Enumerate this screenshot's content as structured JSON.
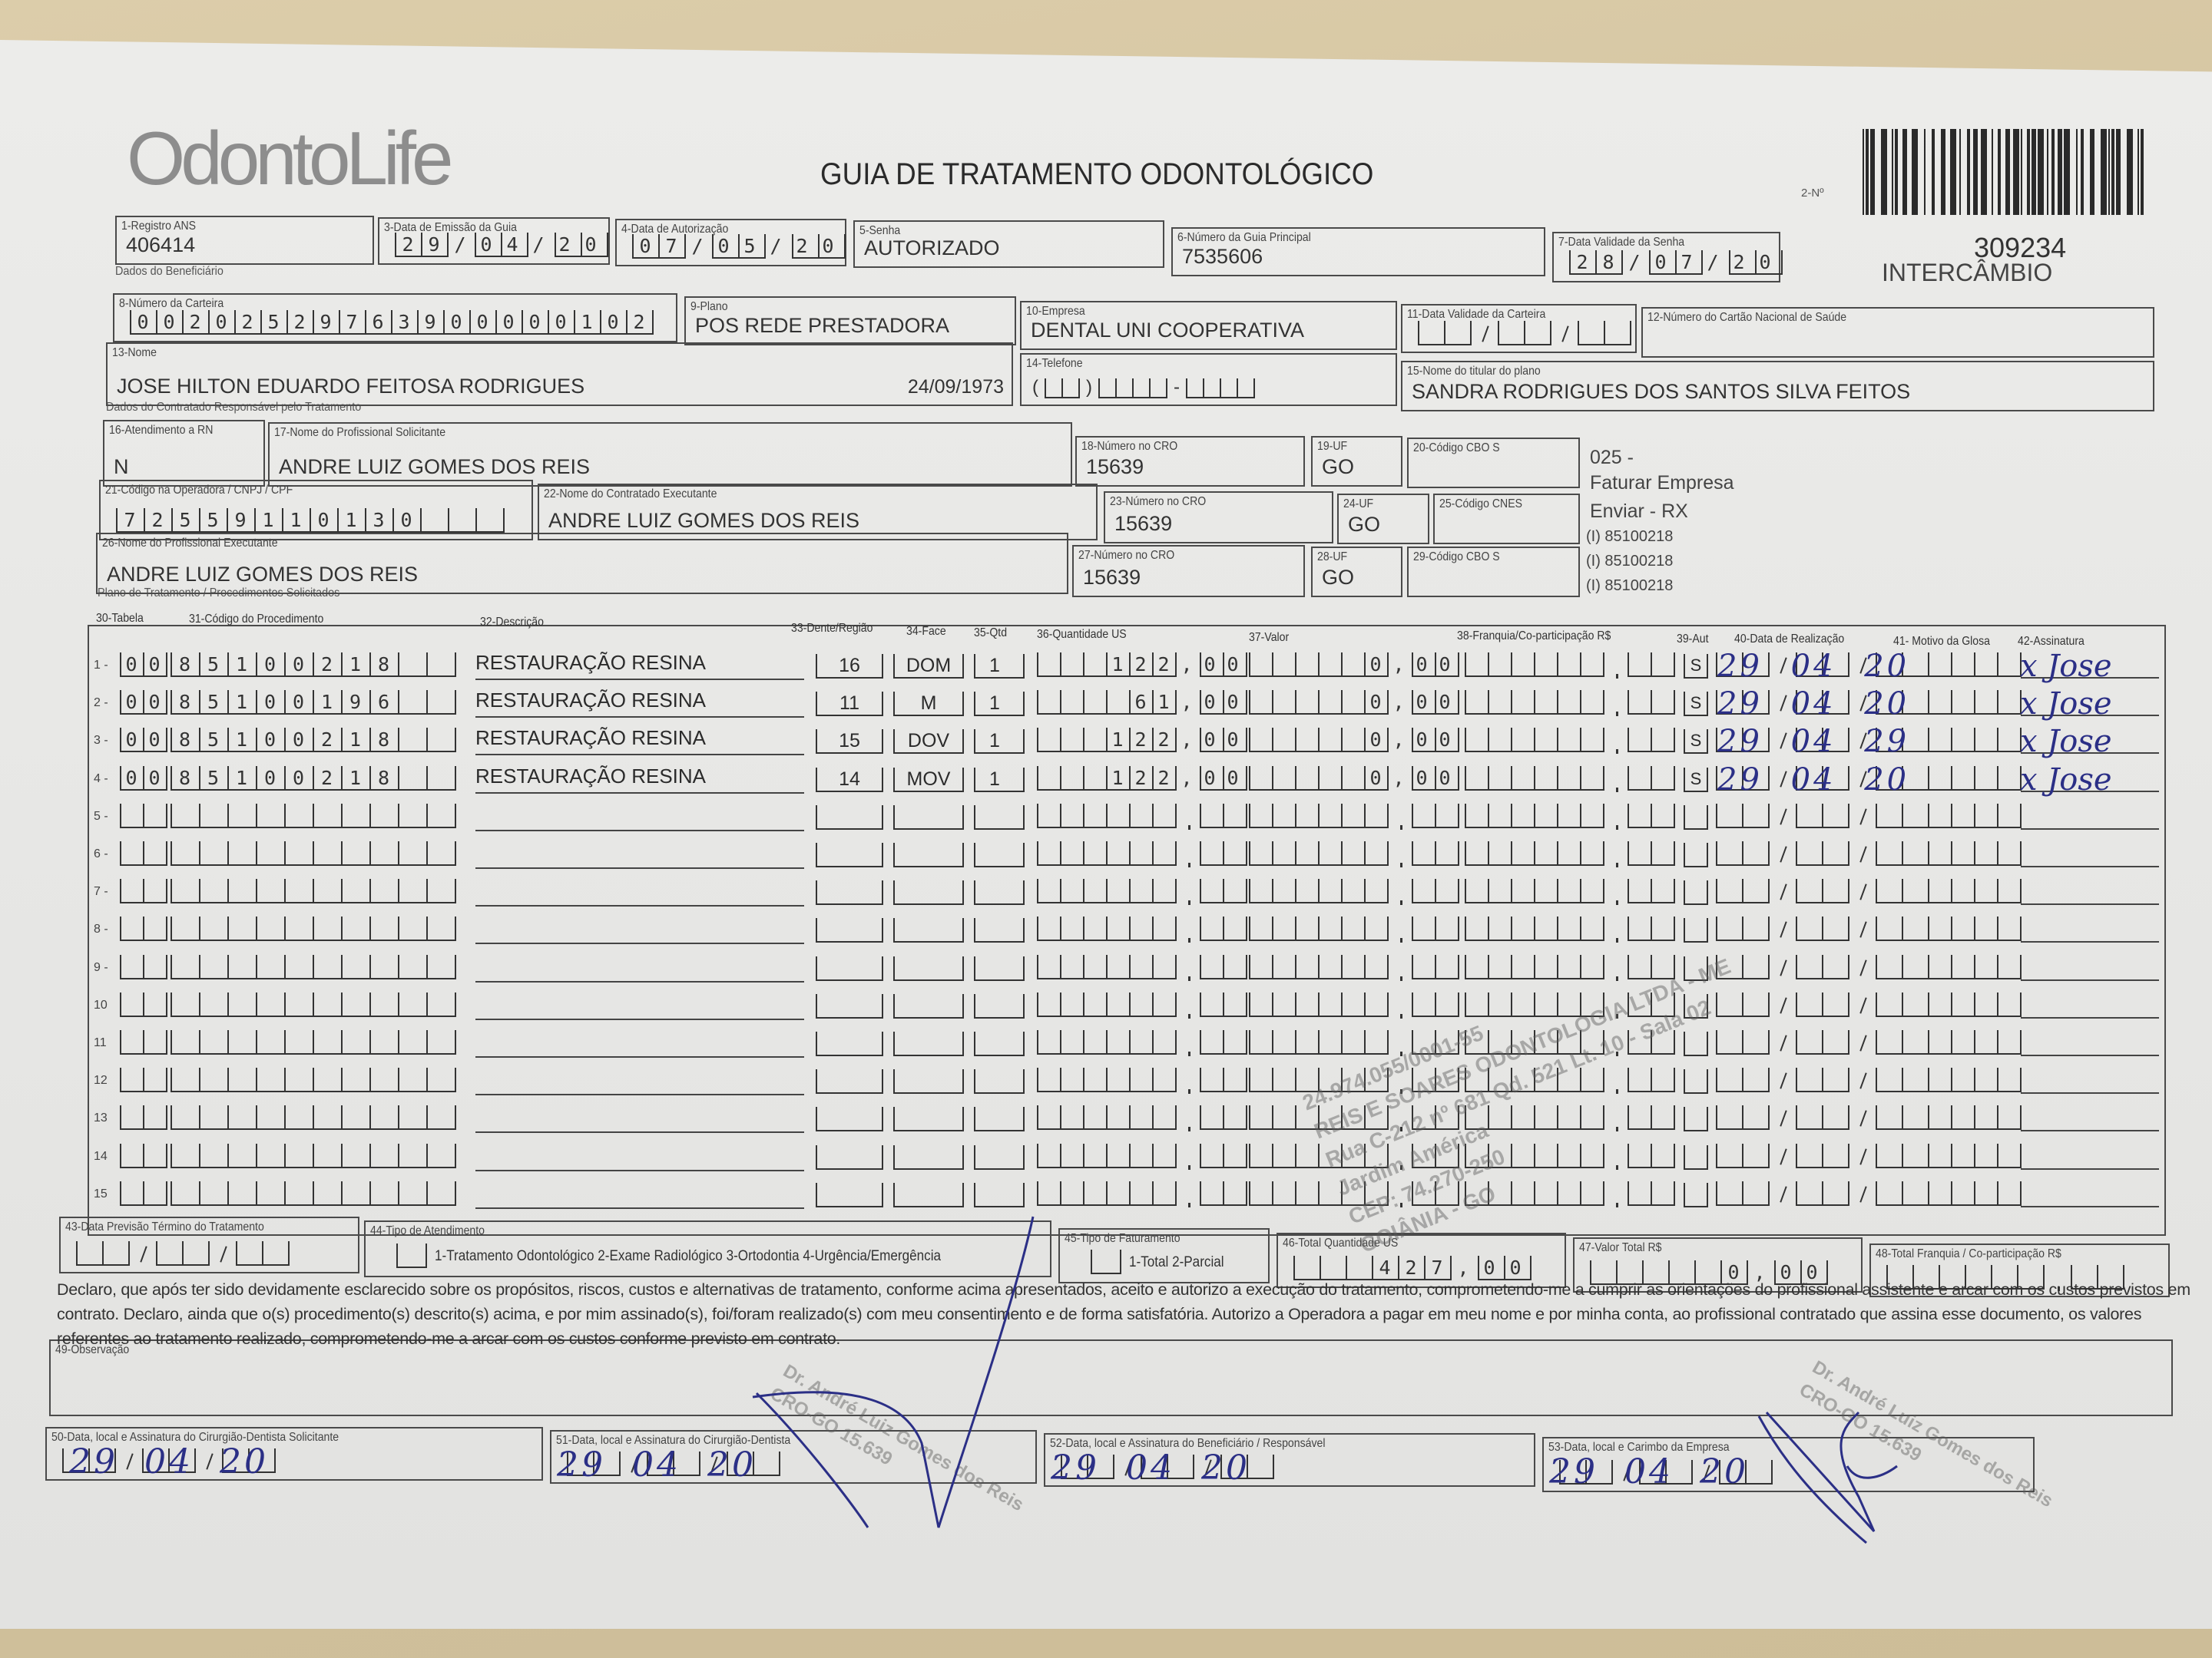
{
  "header": {
    "logo": "OdontoLife",
    "title": "GUIA DE TRATAMENTO ODONTOLÓGICO",
    "guide_no_label": "2-Nº",
    "guide_number": "309234",
    "guide_type": "INTERCÂMBIO"
  },
  "sections": {
    "beneficiario": "Dados do Beneficiário",
    "contratado": "Dados do Contratado Responsável pelo Tratamento",
    "plano": "Plano de Tratamento / Procedimentos Solicitados"
  },
  "fields": {
    "f1": {
      "label": "1-Registro ANS",
      "value": "406414"
    },
    "f3": {
      "label": "3-Data de Emissão da Guia",
      "value": "29/04/20"
    },
    "f4": {
      "label": "4-Data de Autorização",
      "value": "07/05/20"
    },
    "f5": {
      "label": "5-Senha",
      "value": "AUTORIZADO"
    },
    "f6": {
      "label": "6-Número da Guia Principal",
      "value": "7535606"
    },
    "f7": {
      "label": "7-Data Validade da Senha",
      "value": "28/07/20"
    },
    "f8": {
      "label": "8-Número da Carteira",
      "value": "00202529763900000102"
    },
    "f9": {
      "label": "9-Plano",
      "value": "POS REDE PRESTADORA"
    },
    "f10": {
      "label": "10-Empresa",
      "value": "DENTAL UNI  COOPERATIVA"
    },
    "f11": {
      "label": "11-Data Validade da Carteira",
      "value": "//"
    },
    "f12": {
      "label": "12-Número do Cartão Nacional de Saúde",
      "value": ""
    },
    "f13": {
      "label": "13-Nome",
      "value": "JOSE HILTON EDUARDO FEITOSA RODRIGUES",
      "birth_date": "24/09/1973"
    },
    "f14": {
      "label": "14-Telefone",
      "value": ""
    },
    "f15": {
      "label": "15-Nome do titular do plano",
      "value": "SANDRA RODRIGUES DOS SANTOS SILVA FEITOS"
    },
    "f16": {
      "label": "16-Atendimento a RN",
      "value": "N"
    },
    "f17": {
      "label": "17-Nome do Profissional Solicitante",
      "value": "ANDRE LUIZ GOMES DOS REIS"
    },
    "f18": {
      "label": "18-Número no CRO",
      "value": "15639"
    },
    "f19": {
      "label": "19-UF",
      "value": "GO"
    },
    "f20": {
      "label": "20-Código CBO S",
      "value": ""
    },
    "f21": {
      "label": "21-Código na Operadora / CNPJ / CPF",
      "value": "72559110130"
    },
    "f22": {
      "label": "22-Nome do Contratado Executante",
      "value": "ANDRE LUIZ GOMES DOS REIS"
    },
    "f23": {
      "label": "23-Número no CRO",
      "value": "15639"
    },
    "f24": {
      "label": "24-UF",
      "value": "GO"
    },
    "f25": {
      "label": "25-Código CNES",
      "value": ""
    },
    "f26": {
      "label": "26-Nome do Profissional Executante",
      "value": "ANDRE LUIZ GOMES DOS REIS"
    },
    "f27": {
      "label": "27-Número no CRO",
      "value": "15639"
    },
    "f28": {
      "label": "28-UF",
      "value": "GO"
    },
    "f29": {
      "label": "29-Código CBO S",
      "value": ""
    },
    "f43": {
      "label": "43-Data Previsão Término do Tratamento",
      "value": "//"
    },
    "f44": {
      "label": "44-Tipo de Atendimento",
      "value": "",
      "options": "1-Tratamento Odontológico  2-Exame Radiológico  3-Ortodontia  4-Urgência/Emergência"
    },
    "f45": {
      "label": "45-Tipo de Faturamento",
      "value": "",
      "options": "1-Total  2-Parcial"
    },
    "f46": {
      "label": "46-Total Quantidade US",
      "value": "427,00"
    },
    "f47": {
      "label": "47-Valor Total R$",
      "value": "0,00"
    },
    "f48": {
      "label": "48-Total Franquia / Co-participação R$",
      "value": ","
    },
    "f49": {
      "label": "49-Observação",
      "value": ""
    },
    "f50": {
      "label": "50-Data, local e Assinatura do Cirurgião-Dentista Solicitante",
      "value": "//"
    },
    "f51": {
      "label": "51-Data, local e Assinatura do Cirurgião-Dentista",
      "value": "//"
    },
    "f52": {
      "label": "52-Data, local e Assinatura do Beneficiário / Responsável",
      "value": "//"
    },
    "f53": {
      "label": "53-Data, local e Carimbo da Empresa",
      "value": "//"
    }
  },
  "side_notes": [
    "025 -",
    "Faturar Empresa",
    "Enviar - RX",
    "(I) 85100218",
    "(I) 85100218",
    "(I) 85100218"
  ],
  "table": {
    "headers": [
      "30-Tabela",
      "31-Código do Procedimento",
      "32-Descrição",
      "33-Dente/Região",
      "34-Face",
      "35-Qtd",
      "36-Quantidade US",
      "37-Valor",
      "38-Franquia/Co-participação R$",
      "39-Aut",
      "40-Data de Realização",
      "41- Motivo da Glosa",
      "42-Assinatura"
    ],
    "rows": [
      {
        "no": "1 -",
        "tabela": "00",
        "codigo": "85100218",
        "descricao": "RESTAURAÇÃO RESINA",
        "dente": "16",
        "face": "DOM",
        "qtd": "1",
        "qtd_us": "122,00",
        "valor": "0,00",
        "franquia": ",",
        "aut": "S",
        "data": "//",
        "motivo": ""
      },
      {
        "no": "2 -",
        "tabela": "00",
        "codigo": "85100196",
        "descricao": "RESTAURAÇÃO RESINA",
        "dente": "11",
        "face": "M",
        "qtd": "1",
        "qtd_us": "61,00",
        "valor": "0,00",
        "franquia": ",",
        "aut": "S",
        "data": "//",
        "motivo": ""
      },
      {
        "no": "3 -",
        "tabela": "00",
        "codigo": "85100218",
        "descricao": "RESTAURAÇÃO RESINA",
        "dente": "15",
        "face": "DOV",
        "qtd": "1",
        "qtd_us": "122,00",
        "valor": "0,00",
        "franquia": ",",
        "aut": "S",
        "data": "//",
        "motivo": ""
      },
      {
        "no": "4 -",
        "tabela": "00",
        "codigo": "85100218",
        "descricao": "RESTAURAÇÃO RESINA",
        "dente": "14",
        "face": "MOV",
        "qtd": "1",
        "qtd_us": "122,00",
        "valor": "0,00",
        "franquia": ",",
        "aut": "S",
        "data": "//",
        "motivo": ""
      },
      {
        "no": "5 -",
        "tabela": "",
        "codigo": "",
        "descricao": "",
        "dente": "",
        "face": "",
        "qtd": "",
        "qtd_us": ",",
        "valor": ",",
        "franquia": ",",
        "aut": "",
        "data": "//",
        "motivo": ""
      },
      {
        "no": "6 -",
        "tabela": "",
        "codigo": "",
        "descricao": "",
        "dente": "",
        "face": "",
        "qtd": "",
        "qtd_us": ",",
        "valor": ",",
        "franquia": ",",
        "aut": "",
        "data": "//",
        "motivo": ""
      },
      {
        "no": "7 -",
        "tabela": "",
        "codigo": "",
        "descricao": "",
        "dente": "",
        "face": "",
        "qtd": "",
        "qtd_us": ",",
        "valor": ",",
        "franquia": ",",
        "aut": "",
        "data": "//",
        "motivo": ""
      },
      {
        "no": "8 -",
        "tabela": "",
        "codigo": "",
        "descricao": "",
        "dente": "",
        "face": "",
        "qtd": "",
        "qtd_us": ",",
        "valor": ",",
        "franquia": ",",
        "aut": "",
        "data": "//",
        "motivo": ""
      },
      {
        "no": "9 -",
        "tabela": "",
        "codigo": "",
        "descricao": "",
        "dente": "",
        "face": "",
        "qtd": "",
        "qtd_us": ",",
        "valor": ",",
        "franquia": ",",
        "aut": "",
        "data": "//",
        "motivo": ""
      },
      {
        "no": "10",
        "tabela": "",
        "codigo": "",
        "descricao": "",
        "dente": "",
        "face": "",
        "qtd": "",
        "qtd_us": ",",
        "valor": ",",
        "franquia": ",",
        "aut": "",
        "data": "//",
        "motivo": ""
      },
      {
        "no": "11",
        "tabela": "",
        "codigo": "",
        "descricao": "",
        "dente": "",
        "face": "",
        "qtd": "",
        "qtd_us": ",",
        "valor": ",",
        "franquia": ",",
        "aut": "",
        "data": "//",
        "motivo": ""
      },
      {
        "no": "12",
        "tabela": "",
        "codigo": "",
        "descricao": "",
        "dente": "",
        "face": "",
        "qtd": "",
        "qtd_us": ",",
        "valor": ",",
        "franquia": ",",
        "aut": "",
        "data": "//",
        "motivo": ""
      },
      {
        "no": "13",
        "tabela": "",
        "codigo": "",
        "descricao": "",
        "dente": "",
        "face": "",
        "qtd": "",
        "qtd_us": ",",
        "valor": ",",
        "franquia": ",",
        "aut": "",
        "data": "//",
        "motivo": ""
      },
      {
        "no": "14",
        "tabela": "",
        "codigo": "",
        "descricao": "",
        "dente": "",
        "face": "",
        "qtd": "",
        "qtd_us": ",",
        "valor": ",",
        "franquia": ",",
        "aut": "",
        "data": "//",
        "motivo": ""
      },
      {
        "no": "15",
        "tabela": "",
        "codigo": "",
        "descricao": "",
        "dente": "",
        "face": "",
        "qtd": "",
        "qtd_us": ",",
        "valor": ",",
        "franquia": ",",
        "aut": "",
        "data": "//",
        "motivo": ""
      }
    ]
  },
  "declaration": [
    "Declaro, que após ter sido devidamente esclarecido sobre os propósitos, riscos, custos e alternativas de tratamento, conforme acima apresentados, aceito e autorizo a execução do tratamento, comprometendo-me a cumprir as orientações do profissional assistente e arcar com os custos previstos em",
    "contrato. Declaro, ainda que o(s) procedimento(s) descrito(s) acima, e por mim assinado(s), foi/foram realizado(s) com meu consentimento e de forma satisfatória. Autorizo a Operadora a pagar em meu nome e por minha conta, ao profissional contratado que assina esse documento, os valores",
    "referentes ao tratamento realizado, comprometendo-me a arcar com os custos conforme previsto em contrato."
  ],
  "handwriting": {
    "row_dates": [
      "29 04 20",
      "29 04 20",
      "29 04 29",
      "29 04 20"
    ],
    "row_signatures": [
      "x Jose",
      "x Jose",
      "x Jose",
      "x Jose"
    ],
    "signature_dates": [
      "29 04 20",
      "29 04 20",
      "29 04 20",
      "29 04 20"
    ]
  },
  "stamps": {
    "company": [
      "24.974.055/0001-55",
      "REIS E SOARES ODONTOLOGIA LTDA - ME",
      "Rua C-212 nº 681 Qd. 521 Lt. 10 - Sala 02",
      "Jardim América",
      "CEP: 74.270-250",
      "GOIÂNIA - GO"
    ],
    "dentist": [
      "Dr. André Luiz Gomes dos Reis",
      "CRO-GO 15.639"
    ]
  },
  "colors": {
    "ink": "#2b2f86",
    "print": "#333333",
    "paper": "#e9e9e7"
  }
}
